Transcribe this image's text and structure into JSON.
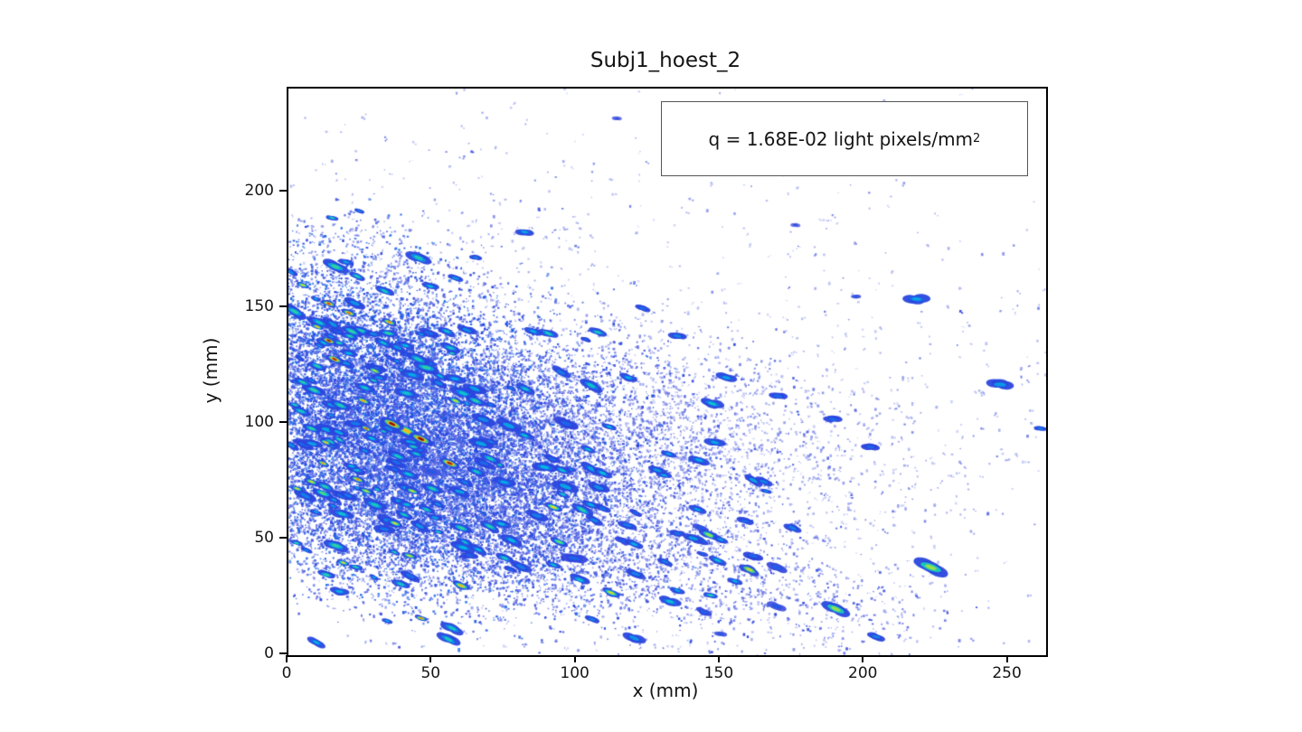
{
  "figure": {
    "title": "Subj1_hoest_2",
    "x_label": "x (mm)",
    "y_label": "y (mm)",
    "annotation": {
      "text": "q = 1.68E-02 light pixels/mm",
      "sup": "2"
    }
  },
  "chart_data": {
    "type": "heatmap",
    "title": "Subj1_hoest_2",
    "xlabel": "x (mm)",
    "ylabel": "y (mm)",
    "xlim": [
      0,
      263
    ],
    "ylim": [
      0,
      245
    ],
    "x_ticks": [
      0,
      50,
      100,
      150,
      200,
      250
    ],
    "y_ticks": [
      0,
      50,
      100,
      150,
      200
    ],
    "grid": false,
    "legend": null,
    "annotation": "q = 1.68E-02 light pixels/mm^2",
    "annotation_box": {
      "x_frac": 0.494,
      "y_frac": 0.026,
      "w_frac": 0.482,
      "h_frac": 0.129
    },
    "colormap": "jet",
    "colormap_stops": [
      [
        0.0,
        210,
        214,
        245
      ],
      [
        0.15,
        140,
        150,
        235
      ],
      [
        0.28,
        45,
        65,
        220
      ],
      [
        0.42,
        25,
        110,
        235
      ],
      [
        0.53,
        0,
        195,
        225
      ],
      [
        0.63,
        60,
        215,
        140
      ],
      [
        0.73,
        170,
        225,
        60
      ],
      [
        0.82,
        250,
        215,
        30
      ],
      [
        0.9,
        246,
        130,
        20
      ],
      [
        0.96,
        210,
        35,
        15
      ],
      [
        1.0,
        135,
        5,
        5
      ]
    ],
    "seed": 1337,
    "speckle_clusters": [
      {
        "cx": 115,
        "cy": 115,
        "sx": 80,
        "sy": 55,
        "n": 900,
        "t": [
          0.05,
          0.18
        ],
        "tilt": -0.2
      },
      {
        "cx": 20,
        "cy": 110,
        "sx": 22,
        "sy": 30,
        "n": 6500,
        "t": [
          0.22,
          0.42
        ],
        "tilt": -0.3
      },
      {
        "cx": 50,
        "cy": 95,
        "sx": 24,
        "sy": 28,
        "n": 6000,
        "t": [
          0.22,
          0.42
        ],
        "tilt": -0.3
      },
      {
        "cx": 80,
        "cy": 88,
        "sx": 26,
        "sy": 26,
        "n": 3200,
        "t": [
          0.2,
          0.38
        ],
        "tilt": -0.3
      },
      {
        "cx": 110,
        "cy": 90,
        "sx": 26,
        "sy": 24,
        "n": 1500,
        "t": [
          0.14,
          0.32
        ],
        "tilt": -0.3
      },
      {
        "cx": 140,
        "cy": 95,
        "sx": 26,
        "sy": 22,
        "n": 700,
        "t": [
          0.1,
          0.28
        ],
        "tilt": -0.2
      },
      {
        "cx": 170,
        "cy": 85,
        "sx": 28,
        "sy": 20,
        "n": 300,
        "t": [
          0.08,
          0.25
        ],
        "tilt": -0.2
      },
      {
        "cx": 25,
        "cy": 60,
        "sx": 20,
        "sy": 18,
        "n": 1800,
        "t": [
          0.2,
          0.4
        ],
        "tilt": -0.25
      },
      {
        "cx": 70,
        "cy": 60,
        "sx": 22,
        "sy": 18,
        "n": 1600,
        "t": [
          0.2,
          0.38
        ],
        "tilt": -0.25
      },
      {
        "cx": 95,
        "cy": 45,
        "sx": 40,
        "sy": 16,
        "n": 900,
        "t": [
          0.14,
          0.32
        ],
        "tilt": -0.25
      },
      {
        "cx": 150,
        "cy": 32,
        "sx": 35,
        "sy": 13,
        "n": 380,
        "t": [
          0.12,
          0.3
        ],
        "tilt": -0.25
      },
      {
        "cx": 190,
        "cy": 22,
        "sx": 25,
        "sy": 10,
        "n": 160,
        "t": [
          0.12,
          0.28
        ],
        "tilt": -0.25
      },
      {
        "cx": 40,
        "cy": 172,
        "sx": 35,
        "sy": 12,
        "n": 180,
        "t": [
          0.12,
          0.3
        ],
        "tilt": -0.1
      },
      {
        "cx": 90,
        "cy": 200,
        "sx": 60,
        "sy": 20,
        "n": 60,
        "t": [
          0.08,
          0.22
        ],
        "tilt": 0
      },
      {
        "cx": 215,
        "cy": 105,
        "sx": 30,
        "sy": 28,
        "n": 120,
        "t": [
          0.08,
          0.22
        ],
        "tilt": -0.1
      }
    ],
    "streak_fields": [
      {
        "n": 130,
        "cx": 50,
        "cy": 100,
        "sx": 38,
        "sy": 34,
        "len": [
          3,
          9
        ],
        "ang": [
          -35,
          -12
        ],
        "t": [
          0.38,
          0.62
        ],
        "tilt": -0.3
      },
      {
        "n": 30,
        "cx": 120,
        "cy": 50,
        "sx": 40,
        "sy": 20,
        "len": [
          4,
          8
        ],
        "ang": [
          -32,
          -18
        ],
        "t": [
          0.35,
          0.55
        ],
        "tilt": -0.2
      },
      {
        "n": 45,
        "cx": 15,
        "cy": 100,
        "sx": 14,
        "sy": 40,
        "len": [
          3,
          7
        ],
        "ang": [
          -32,
          -15
        ],
        "t": [
          0.42,
          0.62
        ],
        "tilt": -0.2
      }
    ],
    "sparse_dots": {
      "n": 240,
      "t": [
        0.06,
        0.28
      ]
    },
    "streaks": [
      [
        41,
        97,
        10,
        -32,
        0.85
      ],
      [
        36,
        100,
        8,
        -30,
        1.0
      ],
      [
        46,
        93.5,
        8,
        -30,
        1.0
      ],
      [
        56,
        83,
        7,
        -28,
        0.98
      ],
      [
        14,
        136,
        5,
        -25,
        1.0
      ],
      [
        16,
        128,
        6,
        -28,
        0.97
      ],
      [
        14,
        152,
        5,
        -22,
        0.95
      ],
      [
        21,
        148,
        5,
        -25,
        0.93
      ],
      [
        35,
        144,
        5,
        -25,
        0.9
      ],
      [
        10,
        142,
        4,
        -25,
        0.85
      ],
      [
        27,
        98,
        4,
        -30,
        0.93
      ],
      [
        24,
        76,
        5,
        -25,
        0.9
      ],
      [
        13,
        92,
        4,
        -26,
        0.85
      ],
      [
        12,
        83,
        4,
        -26,
        0.88
      ],
      [
        26,
        110,
        5,
        -28,
        0.88
      ],
      [
        58,
        110,
        5,
        -28,
        0.8
      ],
      [
        3,
        72,
        4,
        -22,
        0.82
      ],
      [
        8,
        75,
        5,
        -24,
        0.78
      ],
      [
        27,
        71,
        5,
        -25,
        0.74
      ],
      [
        43,
        71,
        5,
        -25,
        0.76
      ],
      [
        19,
        40,
        4,
        -22,
        0.8
      ],
      [
        42,
        43,
        5,
        -24,
        0.76
      ],
      [
        46,
        16,
        4,
        -20,
        0.9
      ],
      [
        60,
        30,
        6,
        -25,
        0.85
      ],
      [
        37,
        57,
        5,
        -25,
        0.8
      ],
      [
        92,
        64,
        6,
        -26,
        0.82
      ],
      [
        94,
        49,
        6,
        -26,
        0.68
      ],
      [
        112,
        27,
        6,
        -28,
        0.8
      ],
      [
        146,
        52,
        7,
        -30,
        0.72
      ],
      [
        160,
        37,
        7,
        -30,
        0.78
      ],
      [
        190,
        20,
        10,
        -28,
        0.72
      ],
      [
        223,
        38,
        12,
        -25,
        0.72
      ],
      [
        5,
        160,
        4,
        -20,
        0.82
      ],
      [
        30,
        123,
        5,
        -28,
        0.75
      ],
      [
        22,
        140,
        7,
        -30,
        0.62
      ],
      [
        10,
        125,
        6,
        -28,
        0.6
      ],
      [
        45,
        128,
        8,
        -30,
        0.58
      ],
      [
        65,
        110,
        7,
        -28,
        0.6
      ],
      [
        33,
        135,
        6,
        -30,
        0.55
      ],
      [
        12,
        70,
        7,
        -25,
        0.65
      ],
      [
        30,
        65,
        8,
        -25,
        0.58
      ],
      [
        50,
        72,
        7,
        -25,
        0.6
      ],
      [
        70,
        85,
        7,
        -27,
        0.58
      ],
      [
        82,
        95,
        6,
        -27,
        0.55
      ],
      [
        60,
        55,
        7,
        -25,
        0.62
      ],
      [
        75,
        42,
        6,
        -25,
        0.58
      ],
      [
        95,
        80,
        6,
        -26,
        0.55
      ],
      [
        105,
        65,
        6,
        -26,
        0.52
      ],
      [
        85,
        140,
        6,
        -25,
        0.52
      ],
      [
        55,
        140,
        6,
        -28,
        0.55
      ],
      [
        18,
        108,
        7,
        -28,
        0.6
      ],
      [
        38,
        86,
        7,
        -26,
        0.58
      ],
      [
        8,
        98,
        6,
        -25,
        0.62
      ],
      [
        5,
        118,
        6,
        -26,
        0.6
      ],
      [
        104,
        89,
        5,
        -24,
        0.55
      ],
      [
        132,
        87,
        5,
        -22,
        0.5
      ],
      [
        118,
        120,
        6,
        -20,
        0.52
      ],
      [
        92,
        39,
        5,
        -26,
        0.55
      ],
      [
        149,
        41,
        6,
        -28,
        0.55
      ],
      [
        155,
        32,
        5,
        -26,
        0.52
      ],
      [
        135,
        28,
        5,
        -25,
        0.5
      ],
      [
        120,
        48,
        6,
        -26,
        0.52
      ],
      [
        150,
        50,
        5,
        -25,
        0.5
      ],
      [
        218,
        154,
        9,
        -6,
        0.5
      ],
      [
        247,
        117,
        9,
        -5,
        0.48
      ],
      [
        189,
        102,
        6,
        -10,
        0.42
      ],
      [
        202,
        90,
        6,
        -10,
        0.4
      ],
      [
        261,
        98,
        4,
        -8,
        0.45
      ],
      [
        170,
        112,
        6,
        -12,
        0.42
      ],
      [
        152,
        120,
        7,
        -15,
        0.5
      ],
      [
        135,
        138,
        6,
        -15,
        0.45
      ],
      [
        123,
        150,
        5,
        -18,
        0.42
      ],
      [
        148,
        92,
        7,
        -16,
        0.5
      ],
      [
        165,
        75,
        6,
        -22,
        0.45
      ],
      [
        142,
        63,
        6,
        -25,
        0.5
      ],
      [
        128,
        80,
        6,
        -24,
        0.48
      ],
      [
        175,
        55,
        6,
        -28,
        0.45
      ],
      [
        82,
        183,
        6,
        -10,
        0.5
      ],
      [
        65,
        172,
        4,
        -14,
        0.45
      ],
      [
        20,
        170,
        5,
        -20,
        0.5
      ],
      [
        58,
        163,
        5,
        -18,
        0.48
      ],
      [
        204,
        8,
        6,
        -18,
        0.45
      ],
      [
        150,
        9,
        4,
        -15,
        0.35
      ],
      [
        114,
        232,
        3,
        -10,
        0.3
      ],
      [
        176,
        186,
        3,
        -8,
        0.3
      ],
      [
        197,
        155,
        3,
        -8,
        0.35
      ]
    ]
  }
}
